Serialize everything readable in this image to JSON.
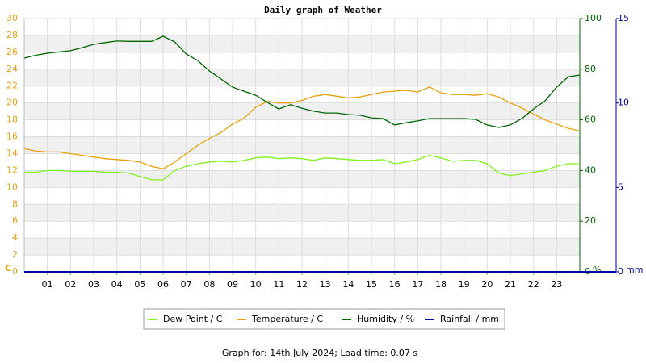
{
  "chart_data": {
    "type": "line",
    "title": "Daily graph of Weather",
    "footer": "Graph for: 14th July 2024; Load time: 0.07 s",
    "y_label": "C",
    "y2_label": "%",
    "y3_label": "mm",
    "xlim": [
      0,
      24
    ],
    "xticks": [
      {
        "value": 1,
        "label": "01"
      },
      {
        "value": 2,
        "label": "02"
      },
      {
        "value": 3,
        "label": "03"
      },
      {
        "value": 4,
        "label": "04"
      },
      {
        "value": 5,
        "label": "05"
      },
      {
        "value": 6,
        "label": "06"
      },
      {
        "value": 7,
        "label": "07"
      },
      {
        "value": 8,
        "label": "08"
      },
      {
        "value": 9,
        "label": "09"
      },
      {
        "value": 10,
        "label": "10"
      },
      {
        "value": 11,
        "label": "11"
      },
      {
        "value": 12,
        "label": "12"
      },
      {
        "value": 13,
        "label": "13"
      },
      {
        "value": 14,
        "label": "14"
      },
      {
        "value": 15,
        "label": "15"
      },
      {
        "value": 16,
        "label": "16"
      },
      {
        "value": 17,
        "label": "17"
      },
      {
        "value": 18,
        "label": "18"
      },
      {
        "value": 19,
        "label": "19"
      },
      {
        "value": 20,
        "label": "20"
      },
      {
        "value": 21,
        "label": "21"
      },
      {
        "value": 22,
        "label": "22"
      },
      {
        "value": 23,
        "label": "23"
      }
    ],
    "ylim": [
      0,
      30
    ],
    "yticks": [
      0,
      2,
      4,
      6,
      8,
      10,
      12,
      14,
      16,
      18,
      20,
      22,
      24,
      26,
      28,
      30
    ],
    "y2lim": [
      0,
      100
    ],
    "y2ticks": [
      0,
      20,
      40,
      60,
      80,
      100
    ],
    "y3lim": [
      0,
      15
    ],
    "y3ticks": [
      0,
      5,
      10,
      15
    ],
    "grid": true,
    "x": [
      0,
      0.5,
      1,
      1.5,
      2,
      2.5,
      3,
      3.5,
      4,
      4.5,
      5,
      5.5,
      6,
      6.5,
      7,
      7.5,
      8,
      8.5,
      9,
      9.5,
      10,
      10.5,
      11,
      11.5,
      12,
      12.5,
      13,
      13.5,
      14,
      14.5,
      15,
      15.5,
      16,
      16.5,
      17,
      17.5,
      18,
      18.5,
      19,
      19.5,
      20,
      20.5,
      21,
      21.5,
      22,
      22.5,
      23,
      23.5,
      24
    ],
    "series": [
      {
        "name": "Dew Point / C",
        "color": "#80f020",
        "axis": "y",
        "values": [
          11.8,
          11.8,
          12.0,
          12.0,
          11.9,
          11.9,
          11.9,
          11.8,
          11.8,
          11.7,
          11.3,
          10.9,
          10.9,
          12.0,
          12.5,
          12.8,
          13.0,
          13.1,
          13.0,
          13.2,
          13.5,
          13.6,
          13.4,
          13.5,
          13.4,
          13.2,
          13.5,
          13.4,
          13.3,
          13.2,
          13.2,
          13.3,
          12.8,
          13.0,
          13.3,
          13.8,
          13.5,
          13.1,
          13.2,
          13.2,
          12.8,
          11.7,
          11.4,
          11.6,
          11.8,
          12.0,
          12.5,
          12.8,
          12.8
        ]
      },
      {
        "name": "Temperature / C",
        "color": "#e8a010",
        "axis": "y",
        "values": [
          14.6,
          14.3,
          14.2,
          14.2,
          14.0,
          13.8,
          13.6,
          13.4,
          13.3,
          13.2,
          13.0,
          12.5,
          12.2,
          13.0,
          14.0,
          15.0,
          15.8,
          16.5,
          17.5,
          18.2,
          19.5,
          20.2,
          20.0,
          20.0,
          20.3,
          20.8,
          21.0,
          20.8,
          20.6,
          20.7,
          21.0,
          21.3,
          21.4,
          21.5,
          21.3,
          21.9,
          21.2,
          21.0,
          21.0,
          20.9,
          21.1,
          20.7,
          20.0,
          19.4,
          18.7,
          18.0,
          17.5,
          17.0,
          16.7
        ]
      },
      {
        "name": "Humidity / %",
        "color": "#006400",
        "axis": "y2",
        "values": [
          84.4,
          85.5,
          86.3,
          86.8,
          87.3,
          88.5,
          89.8,
          90.5,
          91.1,
          91.0,
          91.0,
          91.0,
          93.0,
          90.8,
          86.0,
          83.4,
          79.3,
          76.1,
          72.9,
          71.3,
          69.7,
          66.9,
          64.3,
          66.0,
          64.6,
          63.4,
          62.7,
          62.7,
          62.1,
          61.8,
          60.8,
          60.5,
          58.0,
          58.9,
          59.6,
          60.5,
          60.5,
          60.5,
          60.5,
          60.2,
          58.0,
          57.0,
          58.0,
          60.5,
          64.3,
          67.5,
          72.9,
          77.0,
          77.7
        ]
      },
      {
        "name": "Rainfall / mm",
        "color": "#0000a0",
        "axis": "y3",
        "values": [
          0,
          0,
          0,
          0,
          0,
          0,
          0,
          0,
          0,
          0,
          0,
          0,
          0,
          0,
          0,
          0,
          0,
          0,
          0,
          0,
          0,
          0,
          0,
          0,
          0,
          0,
          0,
          0,
          0,
          0,
          0,
          0,
          0,
          0,
          0,
          0,
          0,
          0,
          0,
          0,
          0,
          0,
          0,
          0,
          0,
          0,
          0,
          0,
          0
        ]
      }
    ]
  }
}
